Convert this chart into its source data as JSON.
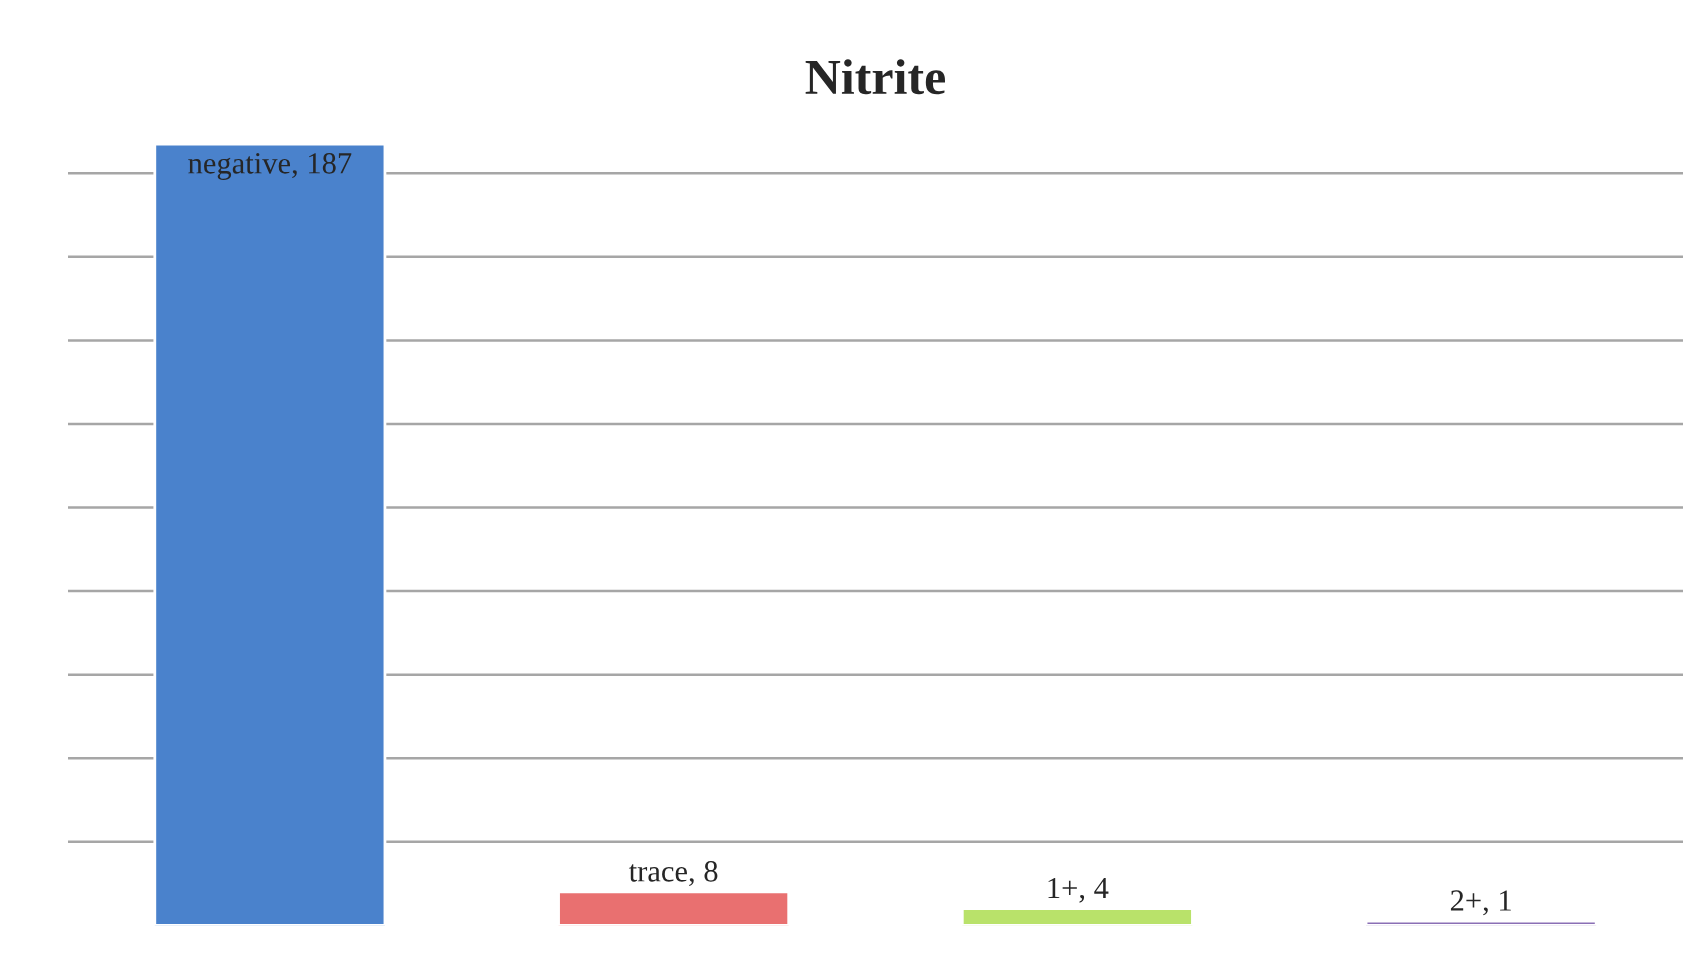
{
  "chart_data": {
    "type": "bar",
    "title": "Nitrite",
    "categories": [
      null,
      null,
      null,
      null
    ],
    "values": [
      187,
      8,
      4,
      1
    ],
    "colors": [
      "#4a82cc",
      "#e97070",
      "#b9e26a",
      "#8a6fb5"
    ],
    "value_labels": [
      "negative, 187",
      "trace, 8",
      "1+, 4",
      "2+, 1"
    ],
    "yticks": [
      {
        "value": 20,
        "label": null
      },
      {
        "value": 40,
        "label": null
      },
      {
        "value": 60,
        "label": null
      },
      {
        "value": 80,
        "label": null
      },
      {
        "value": 100,
        "label": null
      },
      {
        "value": 120,
        "label": null
      },
      {
        "value": 140,
        "label": null
      },
      {
        "value": 160,
        "label": null
      },
      {
        "value": 180,
        "label": null
      }
    ],
    "grid": "y"
  }
}
